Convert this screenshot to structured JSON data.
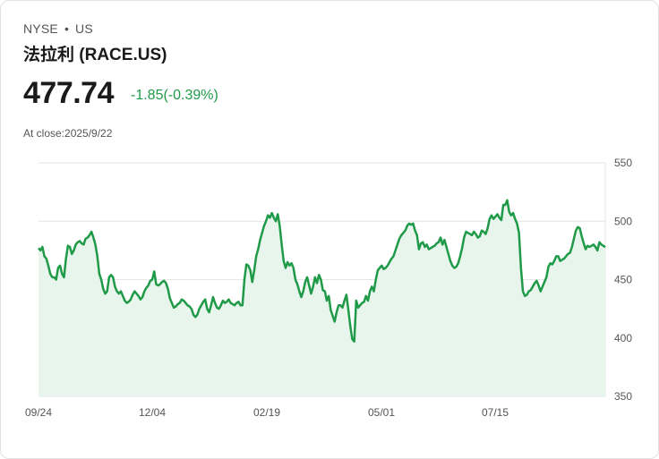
{
  "header": {
    "exchange": "NYSE",
    "separator": "•",
    "market": "US",
    "name": "法拉利 (RACE.US)",
    "price": "477.74",
    "change": "-1.85(-0.39%)",
    "close_label": "At close:2025/9/22"
  },
  "colors": {
    "line": "#1f9a48",
    "fill": "#e8f5ec",
    "change": "#1f9a48"
  },
  "chart_data": {
    "type": "area",
    "ylim": [
      350,
      550
    ],
    "yticks": [
      "550",
      "500",
      "450",
      "400",
      "350"
    ],
    "xticks": [
      "09/24",
      "12/04",
      "02/19",
      "05/01",
      "07/15"
    ],
    "grid": true,
    "y_axis_position": "right",
    "values": [
      477,
      475,
      478,
      470,
      468,
      462,
      455,
      452,
      452,
      450,
      460,
      462,
      455,
      452,
      468,
      479,
      478,
      472,
      475,
      480,
      482,
      483,
      481,
      480,
      485,
      486,
      488,
      491,
      486,
      480,
      470,
      455,
      450,
      442,
      438,
      440,
      452,
      454,
      452,
      444,
      440,
      438,
      440,
      436,
      432,
      430,
      431,
      433,
      437,
      440,
      438,
      436,
      433,
      435,
      440,
      443,
      445,
      449,
      450,
      457,
      446,
      445,
      446,
      448,
      449,
      447,
      442,
      434,
      430,
      426,
      427,
      429,
      430,
      433,
      432,
      430,
      428,
      427,
      425,
      420,
      418,
      420,
      425,
      428,
      431,
      433,
      425,
      422,
      428,
      435,
      430,
      426,
      425,
      428,
      432,
      430,
      431,
      433,
      430,
      429,
      428,
      430,
      431,
      428,
      428,
      450,
      463,
      462,
      458,
      448,
      458,
      470,
      476,
      484,
      490,
      496,
      500,
      505,
      503,
      507,
      503,
      500,
      506,
      496,
      480,
      466,
      460,
      465,
      462,
      464,
      460,
      450,
      446,
      440,
      435,
      440,
      448,
      452,
      445,
      438,
      444,
      452,
      447,
      454,
      450,
      441,
      440,
      432,
      436,
      424,
      419,
      414,
      422,
      428,
      428,
      426,
      432,
      437,
      424,
      410,
      399,
      397,
      432,
      426,
      428,
      430,
      431,
      436,
      432,
      440,
      444,
      440,
      450,
      458,
      460,
      462,
      459,
      460,
      462,
      465,
      468,
      470,
      475,
      480,
      485,
      488,
      490,
      492,
      496,
      498,
      497,
      498,
      492,
      488,
      476,
      481,
      482,
      478,
      480,
      476,
      477,
      478,
      479,
      481,
      482,
      486,
      480,
      484,
      478,
      472,
      466,
      462,
      460,
      461,
      464,
      470,
      477,
      486,
      491,
      490,
      489,
      488,
      491,
      489,
      486,
      487,
      492,
      491,
      489,
      494,
      502,
      505,
      502,
      504,
      506,
      503,
      501,
      514,
      514,
      518,
      508,
      505,
      507,
      502,
      498,
      490,
      460,
      440,
      436,
      437,
      440,
      441,
      444,
      447,
      449,
      445,
      440,
      444,
      448,
      452,
      461,
      464,
      463,
      466,
      470,
      470,
      466,
      467,
      468,
      470,
      472,
      473,
      478,
      485,
      492,
      495,
      494,
      487,
      481,
      476,
      479,
      478,
      479,
      480,
      478,
      475,
      482,
      480,
      479,
      477.74
    ]
  }
}
